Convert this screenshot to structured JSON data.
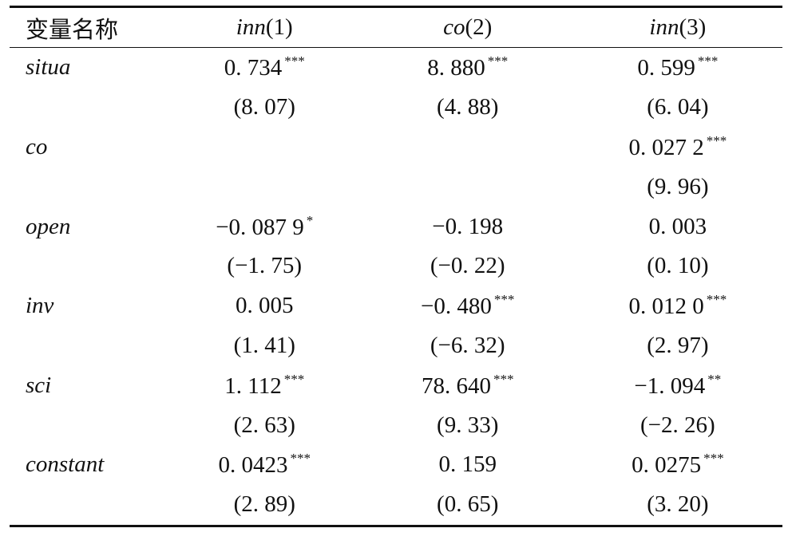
{
  "table": {
    "columns": [
      {
        "name": "变量名称"
      },
      {
        "name": "inn",
        "index": "(1)"
      },
      {
        "name": "co",
        "index": "(2)"
      },
      {
        "name": "inn",
        "index": "(3)"
      }
    ],
    "rows": [
      {
        "variable": "situa",
        "cells": [
          {
            "coef": "0. 734",
            "stars": "***",
            "t": "(8. 07)"
          },
          {
            "coef": "8. 880",
            "stars": "***",
            "t": "(4. 88)"
          },
          {
            "coef": "0. 599",
            "stars": "***",
            "t": "(6. 04)"
          }
        ]
      },
      {
        "variable": "co",
        "cells": [
          {},
          {},
          {
            "coef": "0. 027 2",
            "stars": "***",
            "t": "(9. 96)"
          }
        ]
      },
      {
        "variable": "open",
        "cells": [
          {
            "coef": "−0. 087 9",
            "stars": "*",
            "t": "(−1. 75)"
          },
          {
            "coef": "−0. 198",
            "t": "(−0. 22)"
          },
          {
            "coef": "0. 003",
            "t": "(0. 10)"
          }
        ]
      },
      {
        "variable": "inv",
        "cells": [
          {
            "coef": "0. 005",
            "t": "(1. 41)"
          },
          {
            "coef": "−0. 480",
            "stars": "***",
            "t": "(−6. 32)"
          },
          {
            "coef": "0. 012 0",
            "stars": "***",
            "t": "(2. 97)"
          }
        ]
      },
      {
        "variable": "sci",
        "cells": [
          {
            "coef": "1. 112",
            "stars": "***",
            "t": "(2. 63)"
          },
          {
            "coef": "78. 640",
            "stars": "***",
            "t": "(9. 33)"
          },
          {
            "coef": "−1. 094",
            "stars": "**",
            "t": "(−2. 26)"
          }
        ]
      },
      {
        "variable": "constant",
        "cells": [
          {
            "coef": "0. 0423",
            "stars": "***",
            "t": "(2. 89)"
          },
          {
            "coef": "0. 159",
            "t": "(0. 65)"
          },
          {
            "coef": "0. 0275",
            "stars": "***",
            "t": "(3. 20)"
          }
        ]
      }
    ]
  }
}
